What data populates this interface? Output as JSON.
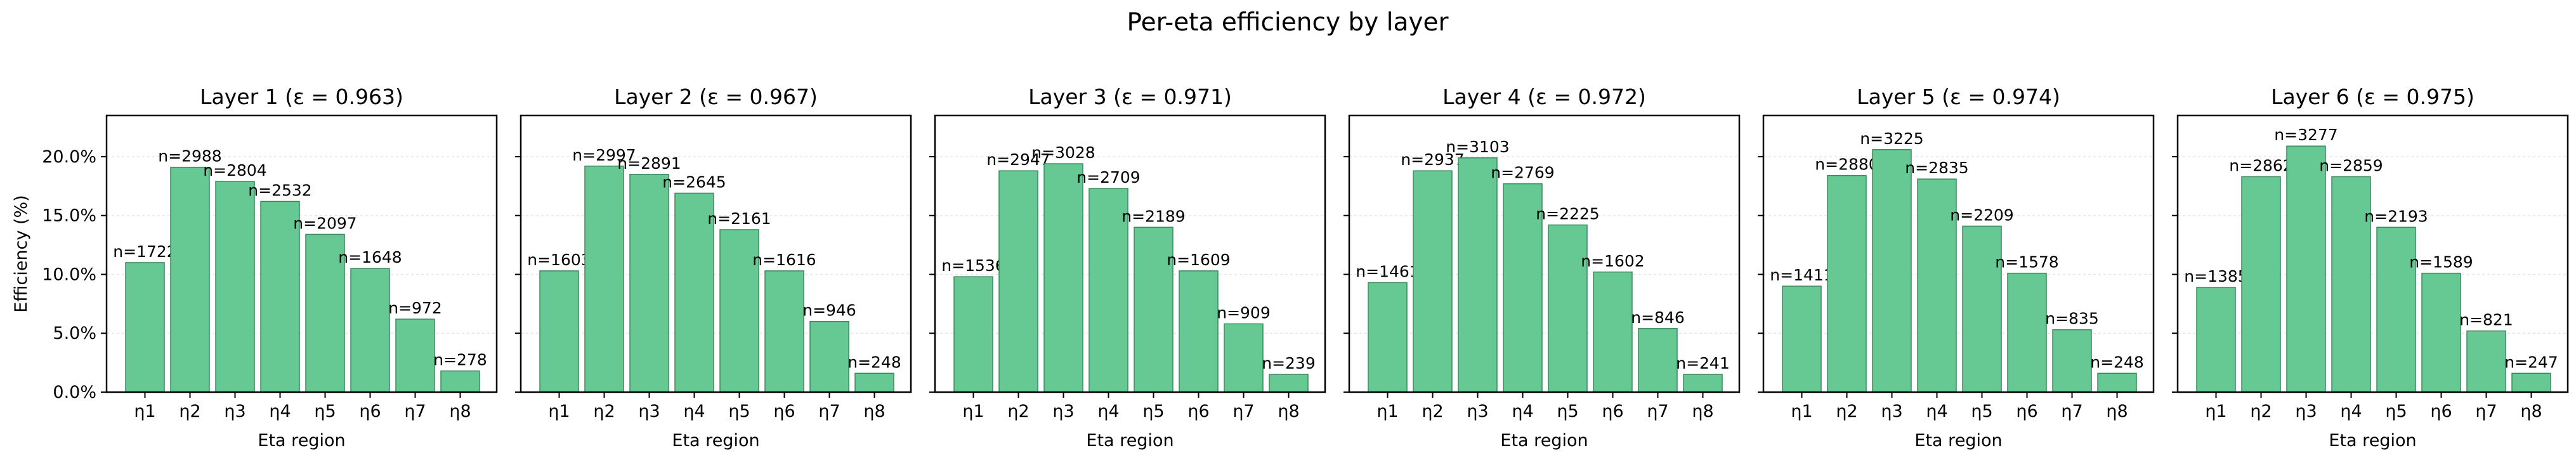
{
  "suptitle": "Per-eta efficiency by layer",
  "colors": {
    "bar": "#66c892",
    "bar_edge": "#3a8a5e",
    "axis": "#000000",
    "grid": "#e6e6e6"
  },
  "chart_data": [
    {
      "type": "bar",
      "title": "Layer 1  (ε = 0.963)",
      "xlabel": "Eta region",
      "ylabel": "Efficiency (%)",
      "categories": [
        "η1",
        "η2",
        "η3",
        "η4",
        "η5",
        "η6",
        "η7",
        "η8"
      ],
      "values": [
        11.0,
        19.1,
        17.9,
        16.2,
        13.4,
        10.5,
        6.2,
        1.8
      ],
      "labels": [
        "n=1722",
        "n=2988",
        "n=2804",
        "n=2532",
        "n=2097",
        "n=1648",
        "n=972",
        "n=278"
      ],
      "ylim": [
        0,
        23.5
      ],
      "yticks": [
        "0.0%",
        "5.0%",
        "10.0%",
        "15.0%",
        "20.0%"
      ],
      "grid": "horizontal, faint"
    },
    {
      "type": "bar",
      "title": "Layer 2  (ε = 0.967)",
      "xlabel": "Eta region",
      "ylabel": "",
      "categories": [
        "η1",
        "η2",
        "η3",
        "η4",
        "η5",
        "η6",
        "η7",
        "η8"
      ],
      "values": [
        10.3,
        19.2,
        18.5,
        16.9,
        13.8,
        10.3,
        6.0,
        1.6
      ],
      "labels": [
        "n=1603",
        "n=2997",
        "n=2891",
        "n=2645",
        "n=2161",
        "n=1616",
        "n=946",
        "n=248"
      ],
      "ylim": [
        0,
        23.5
      ],
      "yticks": [],
      "grid": "horizontal, faint"
    },
    {
      "type": "bar",
      "title": "Layer 3  (ε = 0.971)",
      "xlabel": "Eta region",
      "ylabel": "",
      "categories": [
        "η1",
        "η2",
        "η3",
        "η4",
        "η5",
        "η6",
        "η7",
        "η8"
      ],
      "values": [
        9.8,
        18.8,
        19.4,
        17.3,
        14.0,
        10.3,
        5.8,
        1.5
      ],
      "labels": [
        "n=1536",
        "n=2947",
        "n=3028",
        "n=2709",
        "n=2189",
        "n=1609",
        "n=909",
        "n=239"
      ],
      "ylim": [
        0,
        23.5
      ],
      "yticks": [],
      "grid": "horizontal, faint"
    },
    {
      "type": "bar",
      "title": "Layer 4  (ε = 0.972)",
      "xlabel": "Eta region",
      "ylabel": "",
      "categories": [
        "η1",
        "η2",
        "η3",
        "η4",
        "η5",
        "η6",
        "η7",
        "η8"
      ],
      "values": [
        9.3,
        18.8,
        19.9,
        17.7,
        14.2,
        10.2,
        5.4,
        1.5
      ],
      "labels": [
        "n=1461",
        "n=2937",
        "n=3103",
        "n=2769",
        "n=2225",
        "n=1602",
        "n=846",
        "n=241"
      ],
      "ylim": [
        0,
        23.5
      ],
      "yticks": [],
      "grid": "horizontal, faint"
    },
    {
      "type": "bar",
      "title": "Layer 5  (ε = 0.974)",
      "xlabel": "Eta region",
      "ylabel": "",
      "categories": [
        "η1",
        "η2",
        "η3",
        "η4",
        "η5",
        "η6",
        "η7",
        "η8"
      ],
      "values": [
        9.0,
        18.4,
        20.6,
        18.1,
        14.1,
        10.1,
        5.3,
        1.6
      ],
      "labels": [
        "n=1411",
        "n=2880",
        "n=3225",
        "n=2835",
        "n=2209",
        "n=1578",
        "n=835",
        "n=248"
      ],
      "ylim": [
        0,
        23.5
      ],
      "yticks": [],
      "grid": "horizontal, faint"
    },
    {
      "type": "bar",
      "title": "Layer 6  (ε = 0.975)",
      "xlabel": "Eta region",
      "ylabel": "",
      "categories": [
        "η1",
        "η2",
        "η3",
        "η4",
        "η5",
        "η6",
        "η7",
        "η8"
      ],
      "values": [
        8.9,
        18.3,
        20.9,
        18.3,
        14.0,
        10.1,
        5.2,
        1.6
      ],
      "labels": [
        "n=1385",
        "n=2862",
        "n=3277",
        "n=2859",
        "n=2193",
        "n=1589",
        "n=821",
        "n=247"
      ],
      "ylim": [
        0,
        23.5
      ],
      "yticks": [],
      "grid": "horizontal, faint"
    }
  ]
}
